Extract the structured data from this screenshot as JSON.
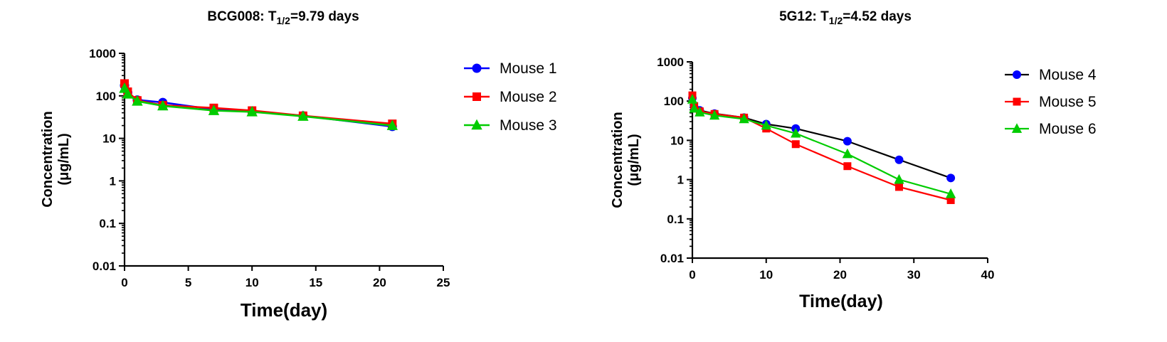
{
  "chart_data": [
    {
      "type": "line",
      "title_main": "BCG008: T",
      "title_sub": "1/2",
      "title_rest": "=9.79 days",
      "xlabel": "Time(day)",
      "ylabel_line1": "Concentration",
      "ylabel_line2": "(μg/mL)",
      "y_scale": "log",
      "xlim": [
        0,
        25
      ],
      "ylim": [
        0.01,
        1000
      ],
      "x_ticks": [
        "0",
        "5",
        "10",
        "15",
        "20",
        "25"
      ],
      "y_ticks": [
        "0.01",
        "0.1",
        "1",
        "10",
        "100",
        "1000"
      ],
      "legend_position": "right",
      "series": [
        {
          "name": "Mouse 1",
          "color": "#0000ff",
          "marker": "circle",
          "line_color": "#0000ff",
          "x": [
            0,
            0.25,
            1,
            3,
            7,
            10,
            14,
            21
          ],
          "y": [
            175,
            120,
            80,
            70,
            48,
            43,
            34,
            19
          ]
        },
        {
          "name": "Mouse 2",
          "color": "#ff0000",
          "marker": "square",
          "line_color": "#ff0000",
          "x": [
            0,
            0.25,
            1,
            3,
            7,
            10,
            14,
            21
          ],
          "y": [
            195,
            125,
            78,
            60,
            52,
            45,
            34,
            22
          ]
        },
        {
          "name": "Mouse 3",
          "color": "#00cc00",
          "marker": "triangle",
          "line_color": "#00cc00",
          "x": [
            0,
            0.25,
            1,
            3,
            7,
            10,
            14,
            21
          ],
          "y": [
            150,
            110,
            75,
            58,
            45,
            42,
            33,
            20
          ]
        }
      ]
    },
    {
      "type": "line",
      "title_main": "5G12: T",
      "title_sub": "1/2",
      "title_rest": "=4.52 days",
      "xlabel": "Time(day)",
      "ylabel_line1": "Concentration",
      "ylabel_line2": "(μg/mL)",
      "y_scale": "log",
      "xlim": [
        0,
        40
      ],
      "ylim": [
        0.01,
        1000
      ],
      "x_ticks": [
        "0",
        "10",
        "20",
        "30",
        "40"
      ],
      "y_ticks": [
        "0.01",
        "0.1",
        "1",
        "10",
        "100",
        "1000"
      ],
      "legend_position": "right",
      "series": [
        {
          "name": "Mouse 4",
          "color": "#0000ff",
          "marker": "circle",
          "line_color": "#000000",
          "x": [
            0,
            0.25,
            1,
            3,
            7,
            10,
            14,
            21,
            28,
            35
          ],
          "y": [
            120,
            70,
            58,
            48,
            38,
            26,
            20,
            9.5,
            3.2,
            1.1
          ]
        },
        {
          "name": "Mouse 5",
          "color": "#ff0000",
          "marker": "square",
          "line_color": "#ff0000",
          "x": [
            0,
            0.25,
            1,
            3,
            7,
            10,
            14,
            21,
            28,
            35
          ],
          "y": [
            140,
            75,
            55,
            47,
            38,
            20,
            8,
            2.2,
            0.65,
            0.3
          ]
        },
        {
          "name": "Mouse 6",
          "color": "#00cc00",
          "marker": "triangle",
          "line_color": "#00cc00",
          "x": [
            0,
            0.25,
            1,
            3,
            7,
            10,
            14,
            21,
            28,
            35
          ],
          "y": [
            110,
            65,
            52,
            43,
            35,
            24,
            15,
            4.5,
            1.0,
            0.43
          ]
        }
      ]
    }
  ]
}
